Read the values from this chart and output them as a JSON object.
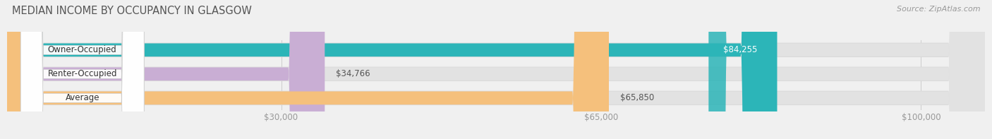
{
  "title": "MEDIAN INCOME BY OCCUPANCY IN GLASGOW",
  "source": "Source: ZipAtlas.com",
  "categories": [
    "Owner-Occupied",
    "Renter-Occupied",
    "Average"
  ],
  "values": [
    84255,
    34766,
    65850
  ],
  "bar_colors": [
    "#2cb5b8",
    "#c9aed4",
    "#f5c07c"
  ],
  "bar_labels": [
    "$84,255",
    "$34,766",
    "$65,850"
  ],
  "label_in_bar": [
    true,
    false,
    false
  ],
  "x_ticks": [
    30000,
    65000,
    100000
  ],
  "x_tick_labels": [
    "$30,000",
    "$65,000",
    "$100,000"
  ],
  "xlim_max": 107000,
  "background_color": "#f0f0f0",
  "bar_bg_color": "#e2e2e2",
  "bar_bg_border_color": "#d0d0d0",
  "title_fontsize": 10.5,
  "label_fontsize": 8.5,
  "tick_fontsize": 8.5,
  "source_fontsize": 8
}
